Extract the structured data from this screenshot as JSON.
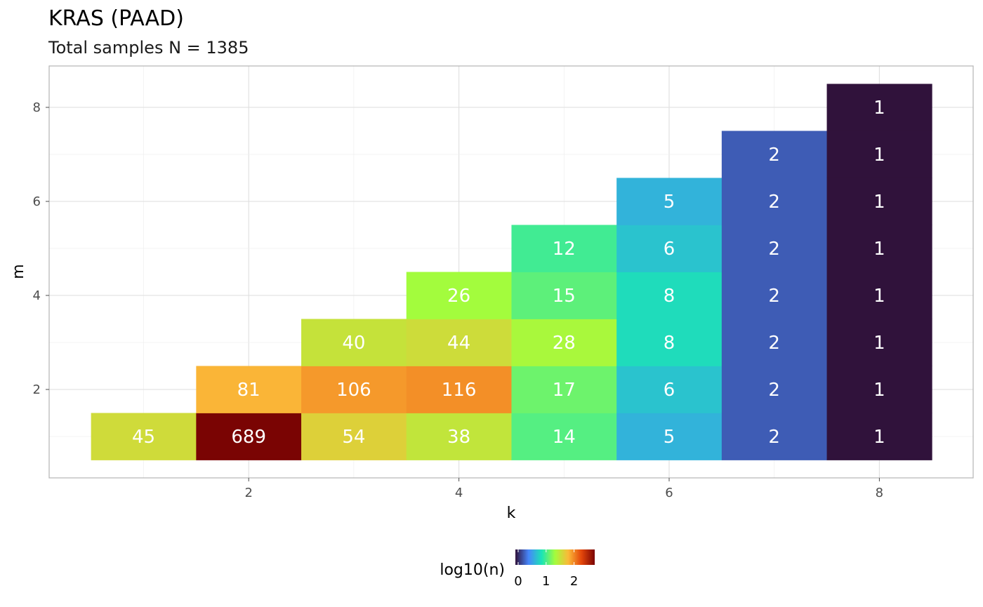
{
  "chart_data": {
    "type": "heatmap",
    "title": "KRAS (PAAD)",
    "subtitle": "Total samples N = 1385",
    "xlabel": "k",
    "ylabel": "m",
    "x_ticks": [
      2,
      4,
      6,
      8
    ],
    "y_ticks": [
      2,
      4,
      6,
      8
    ],
    "xlim": [
      0.5,
      8.5
    ],
    "ylim": [
      0.5,
      8.5
    ],
    "grid": true,
    "legend": {
      "title": "log10(n)",
      "position": "bottom",
      "ticks": [
        "0",
        "1",
        "2"
      ],
      "colormap": [
        "#30123b",
        "#4686fb",
        "#1be5b5",
        "#a4fc3c",
        "#fbb938",
        "#e4460a",
        "#7a0403"
      ],
      "range": [
        0,
        2.84
      ]
    },
    "cells": [
      {
        "k": 1,
        "m": 1,
        "n": 45
      },
      {
        "k": 2,
        "m": 1,
        "n": 689
      },
      {
        "k": 2,
        "m": 2,
        "n": 81
      },
      {
        "k": 3,
        "m": 1,
        "n": 54
      },
      {
        "k": 3,
        "m": 2,
        "n": 106
      },
      {
        "k": 3,
        "m": 3,
        "n": 40
      },
      {
        "k": 4,
        "m": 1,
        "n": 38
      },
      {
        "k": 4,
        "m": 2,
        "n": 116
      },
      {
        "k": 4,
        "m": 3,
        "n": 44
      },
      {
        "k": 4,
        "m": 4,
        "n": 26
      },
      {
        "k": 5,
        "m": 1,
        "n": 14
      },
      {
        "k": 5,
        "m": 2,
        "n": 17
      },
      {
        "k": 5,
        "m": 3,
        "n": 28
      },
      {
        "k": 5,
        "m": 4,
        "n": 15
      },
      {
        "k": 5,
        "m": 5,
        "n": 12
      },
      {
        "k": 6,
        "m": 1,
        "n": 5
      },
      {
        "k": 6,
        "m": 2,
        "n": 6
      },
      {
        "k": 6,
        "m": 3,
        "n": 8
      },
      {
        "k": 6,
        "m": 4,
        "n": 8
      },
      {
        "k": 6,
        "m": 5,
        "n": 6
      },
      {
        "k": 6,
        "m": 6,
        "n": 5
      },
      {
        "k": 7,
        "m": 1,
        "n": 2
      },
      {
        "k": 7,
        "m": 2,
        "n": 2
      },
      {
        "k": 7,
        "m": 3,
        "n": 2
      },
      {
        "k": 7,
        "m": 4,
        "n": 2
      },
      {
        "k": 7,
        "m": 5,
        "n": 2
      },
      {
        "k": 7,
        "m": 6,
        "n": 2
      },
      {
        "k": 7,
        "m": 7,
        "n": 2
      },
      {
        "k": 8,
        "m": 1,
        "n": 1
      },
      {
        "k": 8,
        "m": 2,
        "n": 1
      },
      {
        "k": 8,
        "m": 3,
        "n": 1
      },
      {
        "k": 8,
        "m": 4,
        "n": 1
      },
      {
        "k": 8,
        "m": 5,
        "n": 1
      },
      {
        "k": 8,
        "m": 6,
        "n": 1
      },
      {
        "k": 8,
        "m": 7,
        "n": 1
      },
      {
        "k": 8,
        "m": 8,
        "n": 1
      }
    ]
  }
}
